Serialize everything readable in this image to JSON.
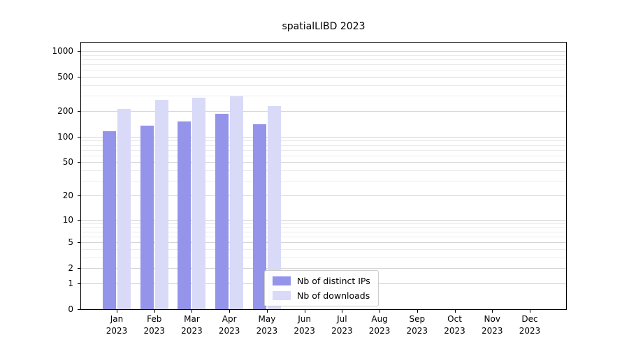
{
  "title": "spatialLIBD 2023",
  "chart_data": {
    "type": "bar",
    "title": "spatialLIBD 2023",
    "x_categories": [
      {
        "month": "Jan",
        "year": "2023"
      },
      {
        "month": "Feb",
        "year": "2023"
      },
      {
        "month": "Mar",
        "year": "2023"
      },
      {
        "month": "Apr",
        "year": "2023"
      },
      {
        "month": "May",
        "year": "2023"
      },
      {
        "month": "Jun",
        "year": "2023"
      },
      {
        "month": "Jul",
        "year": "2023"
      },
      {
        "month": "Aug",
        "year": "2023"
      },
      {
        "month": "Sep",
        "year": "2023"
      },
      {
        "month": "Oct",
        "year": "2023"
      },
      {
        "month": "Nov",
        "year": "2023"
      },
      {
        "month": "Dec",
        "year": "2023"
      }
    ],
    "series": [
      {
        "name": "Nb of distinct IPs",
        "color": "#9494ea",
        "values": [
          115,
          135,
          150,
          185,
          140,
          null,
          null,
          null,
          null,
          null,
          null,
          null
        ]
      },
      {
        "name": "Nb of downloads",
        "color": "#d9d9f8",
        "values": [
          210,
          270,
          285,
          295,
          230,
          null,
          null,
          null,
          null,
          null,
          null,
          null
        ]
      }
    ],
    "y_axis": {
      "scale": "log10(value+1)",
      "tick_values": [
        0,
        1,
        2,
        5,
        10,
        20,
        50,
        100,
        200,
        500,
        1000
      ]
    },
    "grid": {
      "horizontal": true,
      "minor_gridlines": true
    },
    "legend_position": "inside-bottom-center"
  }
}
